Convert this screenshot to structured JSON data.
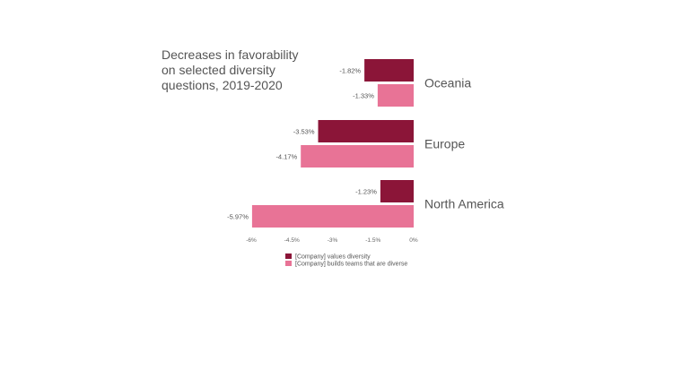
{
  "chart_data": {
    "type": "bar",
    "orientation": "horizontal",
    "title": "Decreases in favorability\non selected diversity\nquestions, 2019-2020",
    "categories": [
      "Oceania",
      "Europe",
      "North America"
    ],
    "series": [
      {
        "name": "[Company] values diversity",
        "color": "#8b1538",
        "values": [
          -1.82,
          -3.53,
          -1.23
        ],
        "labels": [
          "-1.82%",
          "-3.53%",
          "-1.23%"
        ]
      },
      {
        "name": "[Company] builds teams that are diverse",
        "color": "#e87396",
        "values": [
          -1.33,
          -4.17,
          -5.97
        ],
        "labels": [
          "-1.33%",
          "-4.17%",
          "-5.97%"
        ]
      }
    ],
    "xlim": [
      -6,
      0
    ],
    "xticks": [
      -6,
      -4.5,
      -3,
      -1.5,
      0
    ],
    "xtick_labels": [
      "-6%",
      "-4.5%",
      "-3%",
      "-1.5%",
      "0%"
    ],
    "grid": false,
    "legend_position": "bottom"
  }
}
